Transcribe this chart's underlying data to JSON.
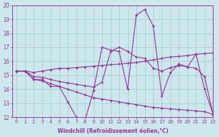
{
  "xlabel": "Windchill (Refroidissement éolien,°C)",
  "ylabel": "",
  "xlim": [
    -0.5,
    23
  ],
  "ylim": [
    12,
    20
  ],
  "xticks": [
    0,
    1,
    2,
    3,
    4,
    5,
    6,
    7,
    8,
    9,
    10,
    11,
    12,
    13,
    14,
    15,
    16,
    17,
    18,
    19,
    20,
    21,
    22,
    23
  ],
  "yticks": [
    12,
    13,
    14,
    15,
    16,
    17,
    18,
    19,
    20
  ],
  "background_color": "#cce8ec",
  "grid_color": "#99cccc",
  "line_color": "#993399",
  "lines": [
    [
      15.3,
      15.3,
      14.7,
      14.7,
      14.2,
      14.2,
      13.1,
      12.0,
      11.75,
      13.9,
      17.0,
      16.8,
      16.7,
      14.0,
      19.3,
      19.7,
      18.5,
      13.5,
      15.2,
      15.8,
      15.6,
      16.5,
      14.0,
      12.2
    ],
    [
      15.3,
      15.3,
      15.2,
      15.3,
      15.4,
      15.5,
      15.5,
      15.55,
      15.6,
      15.65,
      15.7,
      15.75,
      15.8,
      15.85,
      15.9,
      16.0,
      16.1,
      16.2,
      16.3,
      16.35,
      16.4,
      16.5,
      16.55,
      16.6
    ],
    [
      15.3,
      15.3,
      14.9,
      14.85,
      14.7,
      14.55,
      14.45,
      14.35,
      14.25,
      14.15,
      14.5,
      16.7,
      17.0,
      16.7,
      16.3,
      16.2,
      15.5,
      15.3,
      15.55,
      15.7,
      15.6,
      15.5,
      14.9,
      12.2
    ],
    [
      15.3,
      15.3,
      14.7,
      14.6,
      14.4,
      14.2,
      14.0,
      13.8,
      13.6,
      13.4,
      13.3,
      13.2,
      13.1,
      13.0,
      12.9,
      12.8,
      12.7,
      12.65,
      12.6,
      12.55,
      12.5,
      12.45,
      12.4,
      12.2
    ]
  ]
}
